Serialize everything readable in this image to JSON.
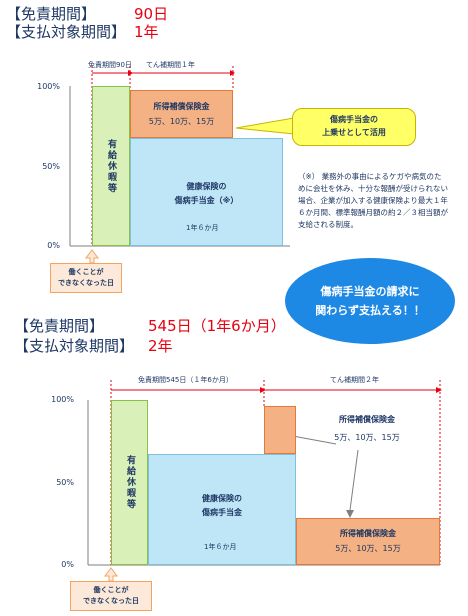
{
  "section1": {
    "exempt_label": "【免責期間】",
    "exempt_value": "90日",
    "coverage_label": "【支払対象期間】",
    "coverage_value": "1年",
    "y_ticks": [
      "100%",
      "50%",
      "0%"
    ],
    "exempt_span_label": "免責期間90日",
    "supplement_span_label": "てん補期間１年",
    "paid_leave_label": "有給休暇等",
    "income_title": "所得補償保険金",
    "income_amounts": "5万、10万、15万",
    "health_line1": "健康保険の",
    "health_line2": "傷病手当金（※）",
    "health_duration": "1年６か月",
    "callout_line1": "傷病手当金の",
    "callout_line2": "上乗せとして活用",
    "note": "（※） 業務外の事由によるケガや病気のために会社を休み、十分な報酬が受けられない場合、企業が加入する健康保険より最大１年６か月間、標準報酬月額の約２／３相当額が支給される制度。",
    "start_line1": "働くことが",
    "start_line2": "できなくなった日"
  },
  "bubble": {
    "line1": "傷病手当金の請求に",
    "line2": "関わらず支払える！！"
  },
  "section2": {
    "exempt_label": "【免責期間】",
    "exempt_value": "545日（1年6か月）",
    "coverage_label": "【支払対象期間】",
    "coverage_value": "2年",
    "y_ticks": [
      "100%",
      "50%",
      "0%"
    ],
    "exempt_span_label": "免責期間545日（１年6か月）",
    "supplement_span_label": "てん補期間２年",
    "paid_leave_label": "有給休暇等",
    "income_title_top": "所得補償保険金",
    "income_amounts_top": "5万、10万、15万",
    "health_line1": "健康保険の",
    "health_line2": "傷病手当金",
    "health_duration": "1年６か月",
    "income_title_bottom": "所得補償保険金",
    "income_amounts_bottom": "5万、10万、15万",
    "start_line1": "働くことが",
    "start_line2": "できなくなった日"
  },
  "colors": {
    "paid_leave": "#d9f0b9",
    "health": "#bfe6f7",
    "income": "#f4b183",
    "accent_red": "#e60012",
    "callout": "#ffff66",
    "bubble": "#1e88e5"
  }
}
